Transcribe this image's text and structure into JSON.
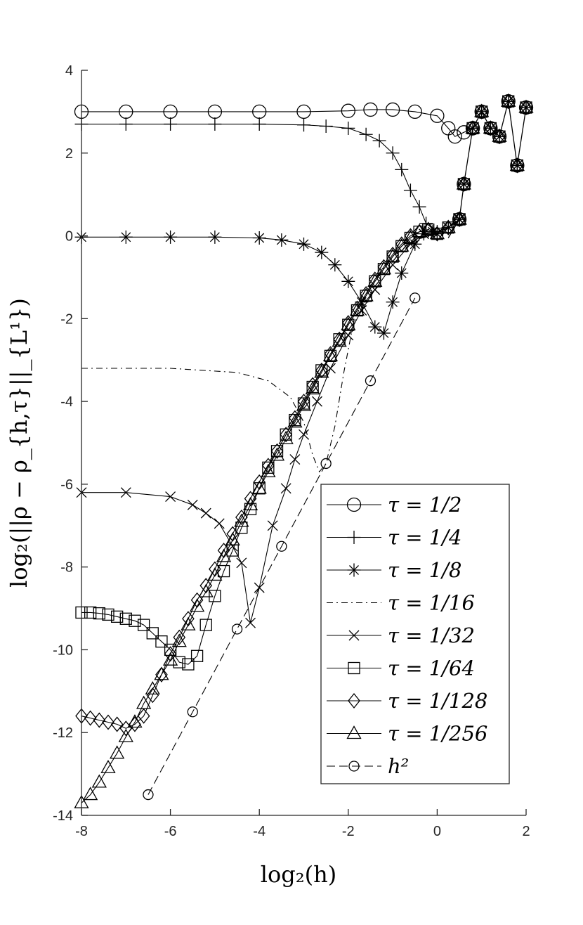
{
  "chart_data": {
    "type": "line",
    "title": "",
    "xlabel": "log₂(h)",
    "ylabel": "log₂(||ρ − ρ_{h,τ}||_{L¹})",
    "xlim": [
      -8,
      2
    ],
    "ylim": [
      -14,
      4
    ],
    "xticks": [
      -8,
      -6,
      -4,
      -2,
      0,
      2
    ],
    "yticks": [
      -14,
      -12,
      -10,
      -8,
      -6,
      -4,
      -2,
      0,
      2,
      4
    ],
    "xtick_labels": [
      "-8",
      "-6",
      "-4",
      "-2",
      "0",
      "2"
    ],
    "ytick_labels": [
      "-14",
      "-12",
      "-10",
      "-8",
      "-6",
      "-4",
      "-2",
      "0",
      "2",
      "4"
    ],
    "grid": false,
    "legend_position": "bottom-right",
    "tail": [
      [
        0.25,
        -0.05
      ],
      [
        0.5,
        0.4
      ],
      [
        0.6,
        1.25
      ],
      [
        0.8,
        2.6
      ],
      [
        1.0,
        3.0
      ],
      [
        1.2,
        2.6
      ],
      [
        1.4,
        2.4
      ],
      [
        1.6,
        3.25
      ],
      [
        1.8,
        1.7
      ],
      [
        2.0,
        3.1
      ]
    ],
    "series": [
      {
        "name": "τ = 1/2",
        "marker": "circle",
        "dash": "solid",
        "points": [
          [
            -8,
            3.0
          ],
          [
            -7,
            3.0
          ],
          [
            -6,
            3.0
          ],
          [
            -5,
            3.0
          ],
          [
            -4,
            3.0
          ],
          [
            -3,
            3.0
          ],
          [
            -2,
            3.02
          ],
          [
            -1.5,
            3.05
          ],
          [
            -1.0,
            3.05
          ],
          [
            -0.5,
            3.0
          ],
          [
            0,
            2.9
          ],
          [
            0.25,
            2.6
          ],
          [
            0.4,
            2.4
          ],
          [
            0.6,
            2.5
          ],
          [
            0.8,
            2.6
          ]
        ]
      },
      {
        "name": "τ = 1/4",
        "marker": "plus",
        "dash": "solid",
        "points": [
          [
            -8,
            2.7
          ],
          [
            -7,
            2.7
          ],
          [
            -6,
            2.7
          ],
          [
            -5,
            2.7
          ],
          [
            -4,
            2.7
          ],
          [
            -3,
            2.68
          ],
          [
            -2.5,
            2.65
          ],
          [
            -2,
            2.6
          ],
          [
            -1.6,
            2.45
          ],
          [
            -1.3,
            2.3
          ],
          [
            -1.0,
            2.0
          ],
          [
            -0.8,
            1.6
          ],
          [
            -0.6,
            1.1
          ],
          [
            -0.4,
            0.7
          ],
          [
            -0.25,
            0.3
          ],
          [
            0,
            0.1
          ],
          [
            0.25,
            0.2
          ],
          [
            0.5,
            0.4
          ]
        ]
      },
      {
        "name": "τ = 1/8",
        "marker": "star",
        "dash": "solid",
        "points": [
          [
            -8,
            -0.03
          ],
          [
            -7,
            -0.03
          ],
          [
            -6,
            -0.03
          ],
          [
            -5,
            -0.03
          ],
          [
            -4,
            -0.05
          ],
          [
            -3.5,
            -0.1
          ],
          [
            -3,
            -0.2
          ],
          [
            -2.6,
            -0.4
          ],
          [
            -2.3,
            -0.7
          ],
          [
            -2.0,
            -1.1
          ],
          [
            -1.7,
            -1.6
          ],
          [
            -1.4,
            -2.2
          ],
          [
            -1.2,
            -2.35
          ],
          [
            -1.0,
            -1.6
          ],
          [
            -0.8,
            -0.9
          ],
          [
            -0.5,
            -0.2
          ],
          [
            -0.3,
            0.05
          ],
          [
            -0.1,
            0.1
          ],
          [
            0,
            0.05
          ],
          [
            0.25,
            0.2
          ],
          [
            0.5,
            0.4
          ]
        ]
      },
      {
        "name": "τ = 1/16",
        "marker": "none",
        "dash": "dashdot",
        "points": [
          [
            -8,
            -3.2
          ],
          [
            -6,
            -3.2
          ],
          [
            -4.5,
            -3.3
          ],
          [
            -3.8,
            -3.5
          ],
          [
            -3.3,
            -3.9
          ],
          [
            -3.0,
            -4.5
          ],
          [
            -2.8,
            -5.3
          ],
          [
            -2.65,
            -5.7
          ],
          [
            -2.5,
            -5.5
          ],
          [
            -2.3,
            -4.6
          ],
          [
            -2.1,
            -3.3
          ],
          [
            -1.9,
            -2.2
          ],
          [
            -1.7,
            -1.6
          ],
          [
            -1.5,
            -1.2
          ],
          [
            -1.0,
            -0.5
          ],
          [
            -0.5,
            -0.1
          ],
          [
            0,
            0.05
          ],
          [
            0.25,
            0.2
          ],
          [
            0.5,
            0.4
          ]
        ]
      },
      {
        "name": "τ = 1/32",
        "marker": "x",
        "dash": "solid",
        "points": [
          [
            -8,
            -6.2
          ],
          [
            -7,
            -6.2
          ],
          [
            -6,
            -6.3
          ],
          [
            -5.5,
            -6.5
          ],
          [
            -5.2,
            -6.7
          ],
          [
            -4.9,
            -6.95
          ],
          [
            -4.6,
            -7.5
          ],
          [
            -4.4,
            -7.9
          ],
          [
            -4.2,
            -9.35
          ],
          [
            -4.0,
            -8.5
          ],
          [
            -3.7,
            -7.0
          ],
          [
            -3.4,
            -6.1
          ],
          [
            -3.2,
            -5.4
          ],
          [
            -3.0,
            -4.8
          ],
          [
            -2.7,
            -4.0
          ],
          [
            -2.4,
            -3.2
          ],
          [
            -2.0,
            -2.4
          ],
          [
            -1.7,
            -1.8
          ],
          [
            -1.4,
            -1.3
          ],
          [
            -1.0,
            -0.7
          ],
          [
            -0.6,
            -0.2
          ],
          [
            -0.3,
            0.05
          ],
          [
            0,
            0.05
          ],
          [
            0.25,
            0.2
          ],
          [
            0.5,
            0.4
          ]
        ]
      },
      {
        "name": "τ = 1/64",
        "marker": "square",
        "dash": "solid",
        "points": [
          [
            -8,
            -9.1
          ],
          [
            -7.8,
            -9.1
          ],
          [
            -7.6,
            -9.12
          ],
          [
            -7.4,
            -9.15
          ],
          [
            -7.2,
            -9.2
          ],
          [
            -7.0,
            -9.25
          ],
          [
            -6.8,
            -9.3
          ],
          [
            -6.6,
            -9.4
          ],
          [
            -6.4,
            -9.6
          ],
          [
            -6.2,
            -9.8
          ],
          [
            -6.0,
            -10.0
          ],
          [
            -5.8,
            -10.3
          ],
          [
            -5.6,
            -10.35
          ],
          [
            -5.4,
            -10.15
          ],
          [
            -5.2,
            -9.4
          ],
          [
            -5.0,
            -8.7
          ],
          [
            -4.8,
            -8.1
          ],
          [
            -4.6,
            -7.6
          ],
          [
            -4.4,
            -7.05
          ],
          [
            -4.2,
            -6.6
          ],
          [
            -4.0,
            -6.1
          ],
          [
            -3.8,
            -5.6
          ],
          [
            -3.6,
            -5.2
          ],
          [
            -3.4,
            -4.8
          ],
          [
            -3.2,
            -4.45
          ],
          [
            -3.0,
            -4.05
          ],
          [
            -2.8,
            -3.65
          ],
          [
            -2.6,
            -3.25
          ],
          [
            -2.4,
            -2.9
          ],
          [
            -2.2,
            -2.5
          ],
          [
            -2.0,
            -2.15
          ],
          [
            -1.8,
            -1.8
          ],
          [
            -1.6,
            -1.45
          ],
          [
            -1.4,
            -1.1
          ],
          [
            -1.2,
            -0.8
          ],
          [
            -1.0,
            -0.5
          ],
          [
            -0.8,
            -0.25
          ],
          [
            -0.6,
            -0.05
          ],
          [
            -0.4,
            0.1
          ],
          [
            -0.2,
            0.15
          ],
          [
            0,
            0.05
          ],
          [
            0.25,
            0.2
          ],
          [
            0.5,
            0.4
          ]
        ]
      },
      {
        "name": "τ = 1/128",
        "marker": "diamond",
        "dash": "solid",
        "points": [
          [
            -8,
            -11.6
          ],
          [
            -7.8,
            -11.65
          ],
          [
            -7.6,
            -11.7
          ],
          [
            -7.4,
            -11.75
          ],
          [
            -7.2,
            -11.8
          ],
          [
            -7.0,
            -11.9
          ],
          [
            -6.8,
            -11.8
          ],
          [
            -6.6,
            -11.6
          ],
          [
            -6.4,
            -11.1
          ],
          [
            -6.2,
            -10.6
          ],
          [
            -6.0,
            -10.1
          ],
          [
            -5.8,
            -9.7
          ],
          [
            -5.6,
            -9.25
          ],
          [
            -5.4,
            -8.8
          ],
          [
            -5.2,
            -8.45
          ],
          [
            -5.0,
            -8.05
          ],
          [
            -4.8,
            -7.6
          ],
          [
            -4.6,
            -7.2
          ],
          [
            -4.4,
            -6.8
          ],
          [
            -4.2,
            -6.35
          ],
          [
            -4.0,
            -5.95
          ],
          [
            -3.8,
            -5.55
          ],
          [
            -3.6,
            -5.2
          ],
          [
            -3.4,
            -4.8
          ],
          [
            -3.2,
            -4.4
          ],
          [
            -3.0,
            -4.0
          ],
          [
            -2.8,
            -3.6
          ],
          [
            -2.6,
            -3.25
          ],
          [
            -2.4,
            -2.85
          ],
          [
            -2.2,
            -2.5
          ],
          [
            -2.0,
            -2.1
          ],
          [
            -1.8,
            -1.75
          ],
          [
            -1.6,
            -1.4
          ],
          [
            -1.4,
            -1.05
          ],
          [
            -1.2,
            -0.75
          ],
          [
            -1.0,
            -0.45
          ],
          [
            -0.8,
            -0.2
          ],
          [
            -0.6,
            0.0
          ],
          [
            -0.4,
            0.1
          ],
          [
            -0.2,
            0.15
          ],
          [
            0,
            0.05
          ],
          [
            0.25,
            0.2
          ],
          [
            0.5,
            0.4
          ]
        ]
      },
      {
        "name": "τ = 1/256",
        "marker": "triangle",
        "dash": "solid",
        "points": [
          [
            -8,
            -13.7
          ],
          [
            -7.8,
            -13.5
          ],
          [
            -7.6,
            -13.2
          ],
          [
            -7.4,
            -12.85
          ],
          [
            -7.2,
            -12.5
          ],
          [
            -7.0,
            -12.1
          ],
          [
            -6.8,
            -11.75
          ],
          [
            -6.6,
            -11.3
          ],
          [
            -6.4,
            -10.95
          ],
          [
            -6.2,
            -10.6
          ],
          [
            -6.0,
            -10.25
          ],
          [
            -5.8,
            -9.8
          ],
          [
            -5.6,
            -9.4
          ],
          [
            -5.4,
            -8.95
          ],
          [
            -5.2,
            -8.6
          ],
          [
            -5.0,
            -8.2
          ],
          [
            -4.8,
            -7.75
          ],
          [
            -4.6,
            -7.35
          ],
          [
            -4.4,
            -6.9
          ],
          [
            -4.2,
            -6.5
          ],
          [
            -4.0,
            -6.1
          ],
          [
            -3.8,
            -5.7
          ],
          [
            -3.6,
            -5.3
          ],
          [
            -3.4,
            -4.9
          ],
          [
            -3.2,
            -4.5
          ],
          [
            -3.0,
            -4.1
          ],
          [
            -2.8,
            -3.7
          ],
          [
            -2.6,
            -3.3
          ],
          [
            -2.4,
            -2.9
          ],
          [
            -2.2,
            -2.55
          ],
          [
            -2.0,
            -2.15
          ],
          [
            -1.8,
            -1.8
          ],
          [
            -1.6,
            -1.45
          ],
          [
            -1.4,
            -1.1
          ],
          [
            -1.2,
            -0.8
          ],
          [
            -1.0,
            -0.5
          ],
          [
            -0.8,
            -0.25
          ],
          [
            -0.6,
            -0.05
          ],
          [
            -0.4,
            0.1
          ],
          [
            -0.2,
            0.15
          ],
          [
            0,
            0.05
          ],
          [
            0.25,
            0.2
          ],
          [
            0.5,
            0.4
          ]
        ]
      },
      {
        "name": "h²",
        "marker": "circle-small",
        "dash": "dashed",
        "points": [
          [
            -6.5,
            -13.5
          ],
          [
            -5.5,
            -11.5
          ],
          [
            -4.5,
            -9.5
          ],
          [
            -3.5,
            -7.5
          ],
          [
            -2.5,
            -5.5
          ],
          [
            -1.5,
            -3.5
          ],
          [
            -0.5,
            -1.5
          ]
        ]
      }
    ]
  }
}
